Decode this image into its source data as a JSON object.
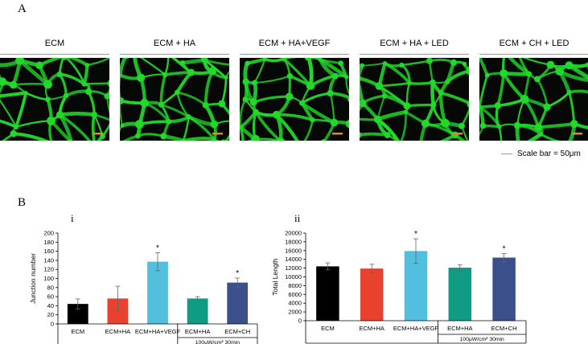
{
  "panel_a": {
    "letter": "A",
    "images": [
      {
        "label": "ECM",
        "seed": 3
      },
      {
        "label": "ECM + HA",
        "seed": 11
      },
      {
        "label": "ECM + HA+VEGF",
        "seed": 23
      },
      {
        "label": "ECM + HA + LED",
        "seed": 37
      },
      {
        "label": "ECM + CH + LED",
        "seed": 51
      }
    ],
    "scale_bar_text": "Scale bar = 50μm",
    "network_color": "#22d82a",
    "scale_bar_color": "#d98a3a"
  },
  "panel_b": {
    "letter": "B"
  },
  "chart_data": [
    {
      "type": "bar",
      "panel": "i",
      "ylabel": "Junction number",
      "ylim": [
        0,
        200
      ],
      "yticks": [
        0,
        20,
        40,
        60,
        80,
        100,
        120,
        140,
        160,
        180,
        200
      ],
      "categories": [
        "ECM",
        "ECM+HA",
        "ECM+HA+VEGF",
        "ECM+HA",
        "ECM+CH"
      ],
      "values": [
        44,
        56,
        137,
        56,
        91
      ],
      "errors": [
        11,
        27,
        20,
        4,
        10
      ],
      "significance": [
        "",
        "",
        "*",
        "",
        "*"
      ],
      "colors": [
        "#000000",
        "#e8422f",
        "#52bfdf",
        "#109b85",
        "#3b4f8a"
      ],
      "group_note": "100μW/cm² 30min"
    },
    {
      "type": "bar",
      "panel": "ii",
      "ylabel": "Total Length",
      "ylim": [
        0,
        20000
      ],
      "yticks": [
        0,
        2000,
        4000,
        6000,
        8000,
        10000,
        12000,
        14000,
        16000,
        18000,
        20000
      ],
      "categories": [
        "ECM",
        "ECM+HA",
        "ECM+HA+VEGF",
        "ECM+HA",
        "ECM+CH"
      ],
      "values": [
        12400,
        11900,
        15900,
        12100,
        14400
      ],
      "errors": [
        800,
        1000,
        2800,
        700,
        900
      ],
      "significance": [
        "",
        "",
        "*",
        "",
        "*"
      ],
      "colors": [
        "#000000",
        "#e8422f",
        "#52bfdf",
        "#109b85",
        "#3b4f8a"
      ],
      "group_note": "100μW/cm² 30min"
    }
  ]
}
